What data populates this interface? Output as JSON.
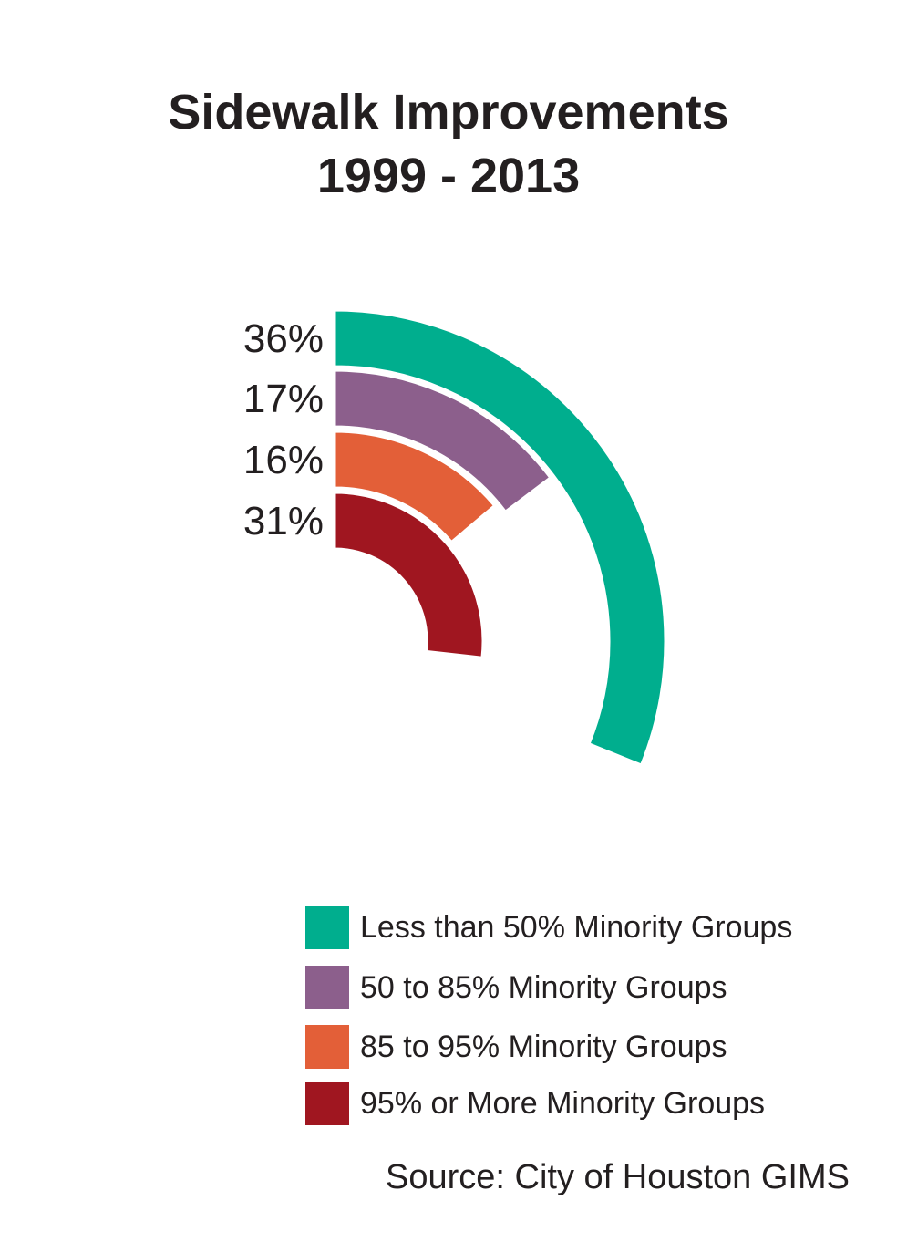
{
  "title_line1": "Sidewalk Improvements",
  "title_line2": "1999 - 2013",
  "source": "Source: City of Houston GIMS",
  "chart_data": {
    "type": "radial-bar",
    "title": "Sidewalk Improvements 1999 - 2013",
    "series": [
      {
        "name": "Less than 50% Minority Groups",
        "value": 36,
        "label": "36%",
        "color": "#00ae8e"
      },
      {
        "name": "50 to 85% Minority Groups",
        "value": 17,
        "label": "17%",
        "color": "#8c5f8c"
      },
      {
        "name": "85 to 95% Minority Groups",
        "value": 16,
        "label": "16%",
        "color": "#e35f38"
      },
      {
        "name": "95% or More Minority Groups",
        "value": 31,
        "label": "31%",
        "color": "#a01620"
      }
    ],
    "legend_position": "bottom-right"
  }
}
